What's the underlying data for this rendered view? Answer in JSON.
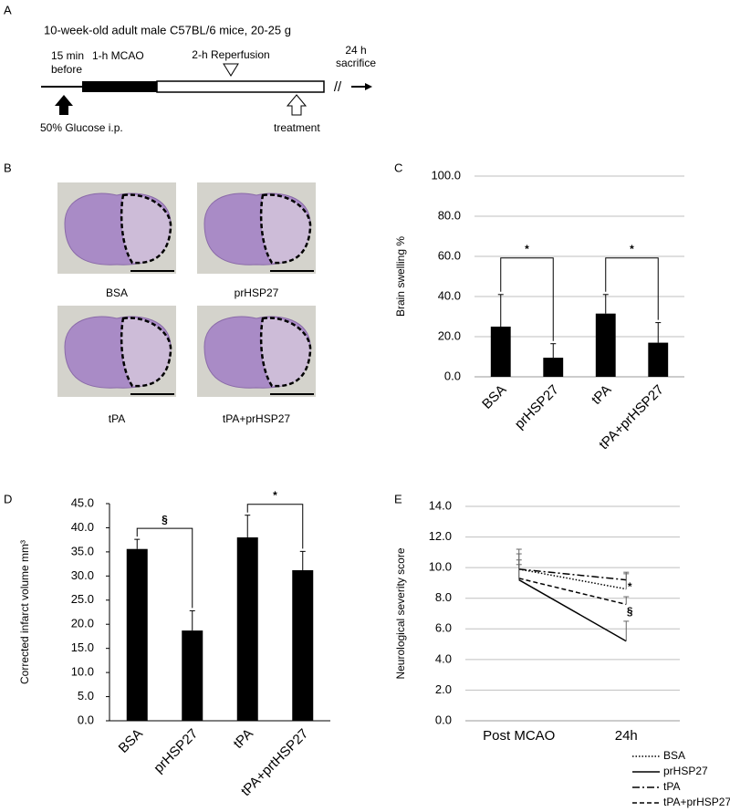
{
  "panels": {
    "a": "A",
    "b": "B",
    "c": "C",
    "d": "D",
    "e": "E"
  },
  "protocol": {
    "title": "10-week-old adult male C57BL/6 mice, 20-25 g",
    "pre": [
      "15 min",
      "before"
    ],
    "mcao": "1-h MCAO",
    "reperfusion": "2-h Reperfusion",
    "sacrifice": [
      "24 h",
      "sacrifice"
    ],
    "break": "//",
    "glucose": "50% Glucose i.p.",
    "treatment": "treatment"
  },
  "images": [
    "BSA",
    "prHSP27",
    "tPA",
    "tPA+prHSP27"
  ],
  "chart_data": [
    {
      "type": "bar",
      "ylabel": "Brain swelling %",
      "categories": [
        "BSA",
        "prHSP27",
        "tPA",
        "tPA+prHSP27"
      ],
      "values": [
        25,
        9.5,
        31.5,
        17
      ],
      "errors": [
        16,
        7,
        9.5,
        10
      ],
      "color": "#000000",
      "grid": true,
      "ylim": [
        0,
        100
      ],
      "yticks": [
        {
          "value": 0,
          "label": "0.0"
        },
        {
          "value": 20,
          "label": "20.0"
        },
        {
          "value": 40,
          "label": "40.0"
        },
        {
          "value": 60,
          "label": "60.0"
        },
        {
          "value": 80,
          "label": "80.0"
        },
        {
          "value": 100,
          "label": "100.0"
        }
      ],
      "annotations": [
        {
          "text": "*",
          "between": [
            0,
            1
          ]
        },
        {
          "text": "*",
          "between": [
            2,
            3
          ]
        }
      ]
    },
    {
      "type": "bar",
      "ylabel": "Corrected infarct volume mm³",
      "categories": [
        "BSA",
        "prHSP27",
        "tPA",
        "tPA+prtHSP27"
      ],
      "values": [
        35.6,
        18.7,
        38.0,
        31.2
      ],
      "errors": [
        2.0,
        4.1,
        4.6,
        3.9
      ],
      "color": "#000000",
      "grid": false,
      "ylim": [
        0,
        45
      ],
      "yticks": [
        {
          "value": 0,
          "label": "0.0"
        },
        {
          "value": 5,
          "label": "5.0"
        },
        {
          "value": 10,
          "label": "10.0"
        },
        {
          "value": 15,
          "label": "15.0"
        },
        {
          "value": 20,
          "label": "20.0"
        },
        {
          "value": 25,
          "label": "25.0"
        },
        {
          "value": 30,
          "label": "30.0"
        },
        {
          "value": 35,
          "label": "35.0"
        },
        {
          "value": 40,
          "label": "40.0"
        },
        {
          "value": 45,
          "label": "45.0"
        }
      ],
      "annotations": [
        {
          "text": "§",
          "between": [
            0,
            1
          ]
        },
        {
          "text": "*",
          "between": [
            2,
            3
          ]
        }
      ]
    },
    {
      "type": "line",
      "ylabel": "Neurological severity score",
      "categories": [
        "Post MCAO",
        "24h"
      ],
      "grid": true,
      "ylim": [
        0,
        14
      ],
      "yticks": [
        {
          "value": 0,
          "label": "0.0"
        },
        {
          "value": 2,
          "label": "2.0"
        },
        {
          "value": 4,
          "label": "4.0"
        },
        {
          "value": 6,
          "label": "6.0"
        },
        {
          "value": 8,
          "label": "8.0"
        },
        {
          "value": 10,
          "label": "10.0"
        },
        {
          "value": 12,
          "label": "12.0"
        },
        {
          "value": 14,
          "label": "14.0"
        }
      ],
      "series": [
        {
          "name": "BSA",
          "color": "#000000",
          "style": "dotted",
          "values": [
            9.9,
            8.6
          ],
          "errors": [
            1.3,
            1.0
          ]
        },
        {
          "name": "prHSP27",
          "color": "#000000",
          "style": "solid",
          "values": [
            9.2,
            5.2
          ],
          "errors": [
            1.0,
            1.3
          ]
        },
        {
          "name": "tPA",
          "color": "#000000",
          "style": "dashdot",
          "values": [
            9.9,
            9.2
          ],
          "errors": [
            1.0,
            0.5
          ]
        },
        {
          "name": "tPA+prHSP27",
          "color": "#000000",
          "style": "dashed",
          "values": [
            9.3,
            7.6
          ],
          "errors": [
            1.2,
            0.5
          ]
        }
      ],
      "annotations": [
        {
          "text": "*",
          "series": 3
        },
        {
          "text": "§",
          "series": 1
        }
      ]
    }
  ]
}
